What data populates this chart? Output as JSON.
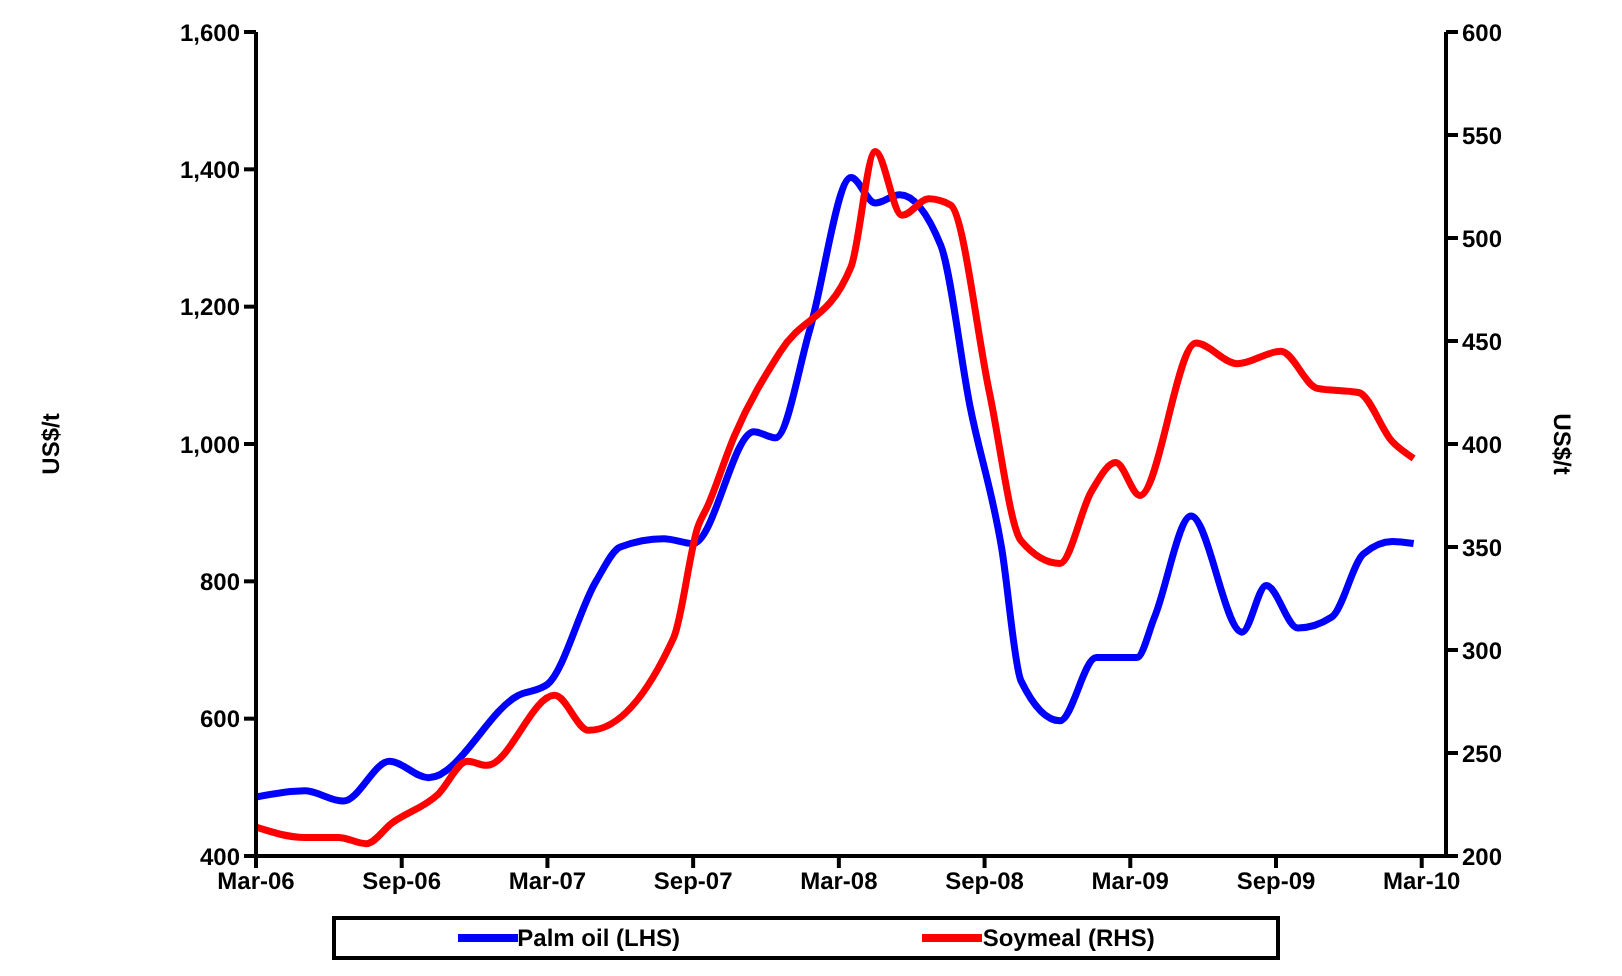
{
  "chart_data": {
    "type": "line",
    "ylabel": "US$/t",
    "y2label": "US$/t",
    "xlim": [
      "2006-03",
      "2010-04"
    ],
    "xticks": [
      {
        "value": "2006-03",
        "label": "Mar-06"
      },
      {
        "value": "2006-09",
        "label": "Sep-06"
      },
      {
        "value": "2007-03",
        "label": "Mar-07"
      },
      {
        "value": "2007-09",
        "label": "Sep-07"
      },
      {
        "value": "2008-03",
        "label": "Mar-08"
      },
      {
        "value": "2008-09",
        "label": "Sep-08"
      },
      {
        "value": "2009-03",
        "label": "Mar-09"
      },
      {
        "value": "2009-09",
        "label": "Sep-09"
      },
      {
        "value": "2010-03",
        "label": "Mar-10"
      }
    ],
    "ylim": [
      400,
      1600
    ],
    "yticks": [
      {
        "value": 400,
        "label": "400"
      },
      {
        "value": 600,
        "label": "600"
      },
      {
        "value": 800,
        "label": "800"
      },
      {
        "value": 1000,
        "label": "1,000"
      },
      {
        "value": 1200,
        "label": "1,200"
      },
      {
        "value": 1400,
        "label": "1,400"
      },
      {
        "value": 1600,
        "label": "1,600"
      }
    ],
    "y2lim": [
      200,
      600
    ],
    "y2ticks": [
      200,
      250,
      300,
      350,
      400,
      450,
      500,
      550,
      600
    ],
    "grid": false,
    "legend": "bottom",
    "marker": "none",
    "line_style": "solid",
    "series": [
      {
        "name": "Palm oil (LHS)",
        "color": "#0000ff",
        "x": [
          "2006-03-01",
          "2006-05-01",
          "2006-06-19",
          "2006-08-16",
          "2006-10-04",
          "2007-01-25",
          "2007-03-01",
          "2007-05-01",
          "2007-06-01",
          "2007-07-25",
          "2007-09-01",
          "2007-11-16",
          "2007-12-13",
          "2008-01-25",
          "2008-03-16",
          "2008-04-16",
          "2008-05-16",
          "2008-07-07",
          "2008-08-13",
          "2008-09-22",
          "2008-10-16",
          "2008-12-04",
          "2009-01-19",
          "2009-03-09",
          "2009-04-01",
          "2009-05-16",
          "2009-07-19",
          "2009-08-19",
          "2009-09-28",
          "2009-11-10",
          "2009-12-19",
          "2010-01-25",
          "2010-02-21"
        ],
        "values": [
          486,
          495,
          480,
          538,
          514,
          634,
          650,
          800,
          850,
          862,
          855,
          1018,
          1009,
          1166,
          1388,
          1351,
          1363,
          1289,
          1055,
          849,
          655,
          597,
          689,
          689,
          748,
          895,
          726,
          794,
          732,
          748,
          840,
          858,
          855
        ]
      },
      {
        "name": "Soymeal (RHS)",
        "color": "#ff0000",
        "axis": "y2",
        "x": [
          "2006-03-01",
          "2006-05-01",
          "2006-06-13",
          "2006-07-17",
          "2006-08-19",
          "2006-10-16",
          "2006-11-22",
          "2006-12-16",
          "2007-03-10",
          "2007-04-22",
          "2007-08-07",
          "2007-09-07",
          "2007-09-19",
          "2007-10-22",
          "2007-12-19",
          "2008-03-16",
          "2008-04-16",
          "2008-05-19",
          "2008-06-22",
          "2008-07-19",
          "2008-09-07",
          "2008-10-16",
          "2008-12-04",
          "2009-01-13",
          "2009-02-13",
          "2009-03-13",
          "2009-05-22",
          "2009-07-13",
          "2009-09-07",
          "2009-10-22",
          "2009-12-13",
          "2010-01-25",
          "2010-02-21"
        ],
        "values": [
          214,
          209,
          209,
          206,
          216,
          230,
          246,
          244,
          278,
          261,
          306,
          360,
          370,
          404,
          445,
          486,
          542,
          511,
          519,
          516,
          425,
          353,
          342,
          377,
          391,
          375,
          449,
          439,
          445,
          427,
          425,
          401,
          393
        ]
      }
    ]
  }
}
